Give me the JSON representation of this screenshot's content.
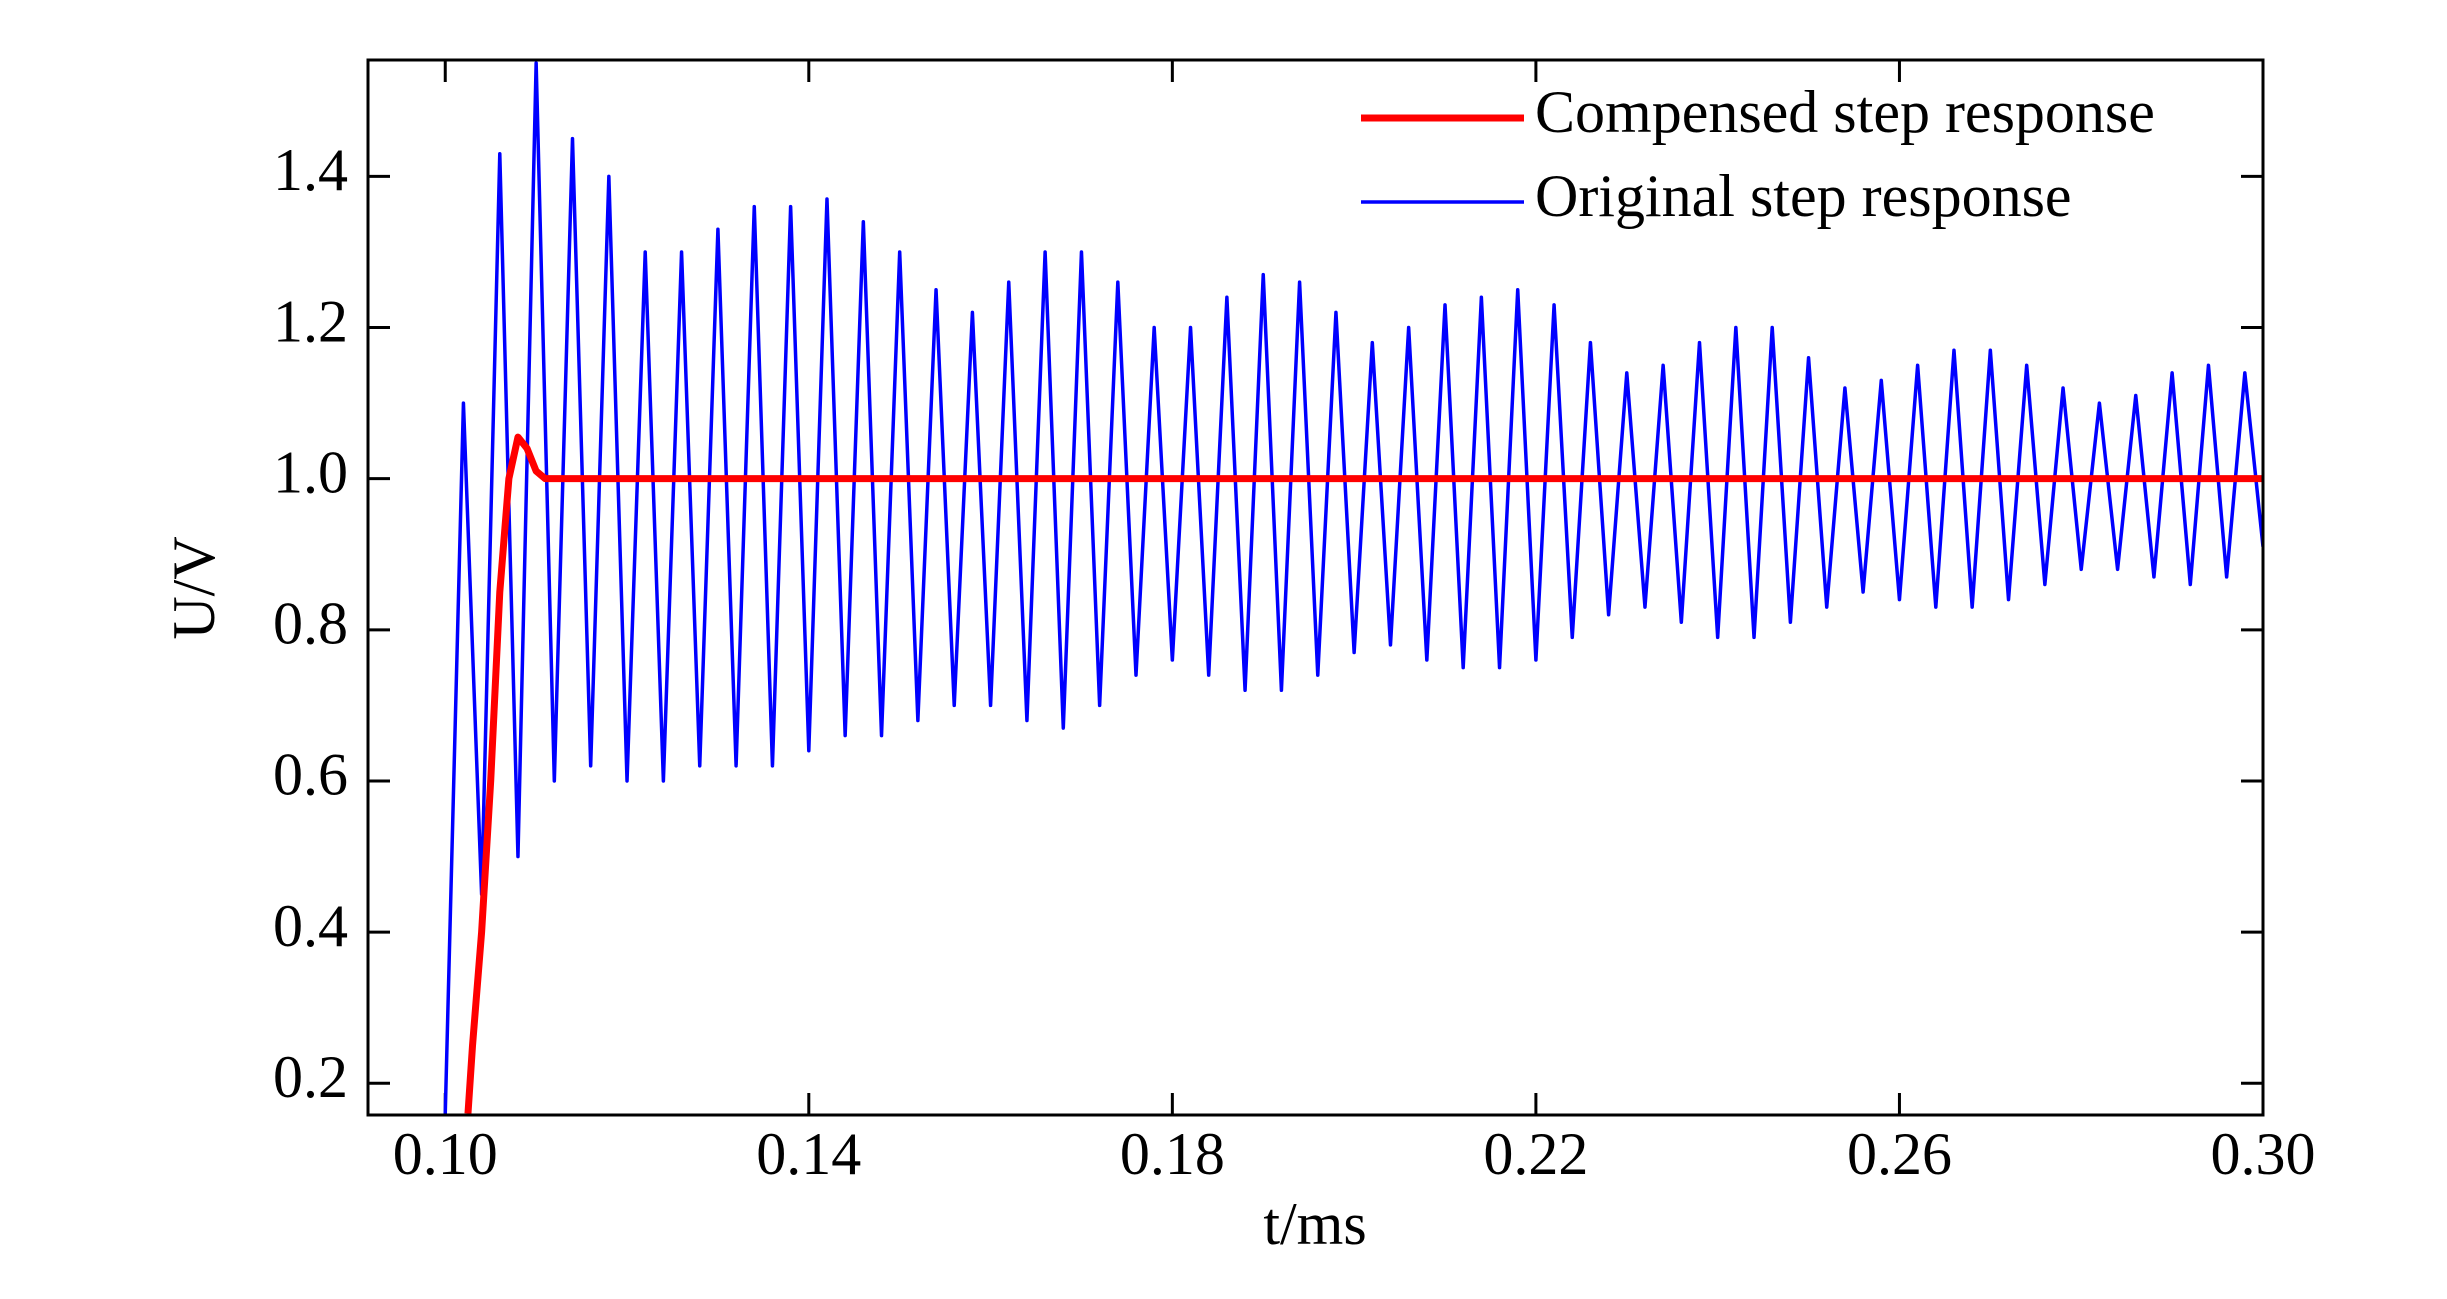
{
  "chart_data": {
    "type": "line",
    "xlabel": "t/ms",
    "ylabel": "U/V",
    "xlim": [
      0.0915,
      0.3
    ],
    "xticks": [
      {
        "value": 0.1,
        "label": "0.10"
      },
      0.14,
      0.18,
      0.22,
      0.26,
      {
        "value": 0.3,
        "label": "0.30"
      }
    ],
    "ylim": [
      0.158,
      1.554
    ],
    "yticks": [
      0.2,
      0.4,
      0.6,
      0.8,
      {
        "value": 1.0,
        "label": "1.0"
      },
      1.2,
      1.4
    ],
    "legend": "upper right",
    "series": [
      {
        "name": "Compensed step response",
        "color": "#ff0000",
        "x": [
          0.1025,
          0.103,
          0.104,
          0.105,
          0.106,
          0.107,
          0.108,
          0.109,
          0.11,
          0.111,
          0.115,
          0.2,
          0.3
        ],
        "values": [
          0.16,
          0.25,
          0.4,
          0.6,
          0.85,
          1.0,
          1.055,
          1.04,
          1.01,
          1.0,
          1.0,
          1.0,
          1.0
        ]
      },
      {
        "name": "Original step response",
        "color": "#0000ff",
        "x": [
          0.1,
          0.102,
          0.104,
          0.106,
          0.108,
          0.11,
          0.112,
          0.114,
          0.116,
          0.118,
          0.12,
          0.122,
          0.124,
          0.126,
          0.128,
          0.13,
          0.132,
          0.134,
          0.136,
          0.138,
          0.14,
          0.142,
          0.144,
          0.146,
          0.148,
          0.15,
          0.152,
          0.154,
          0.156,
          0.158,
          0.16,
          0.162,
          0.164,
          0.166,
          0.168,
          0.17,
          0.172,
          0.174,
          0.176,
          0.178,
          0.18,
          0.182,
          0.184,
          0.186,
          0.188,
          0.19,
          0.192,
          0.194,
          0.196,
          0.198,
          0.2,
          0.202,
          0.204,
          0.206,
          0.208,
          0.21,
          0.212,
          0.214,
          0.216,
          0.218,
          0.22,
          0.222,
          0.224,
          0.226,
          0.228,
          0.23,
          0.232,
          0.234,
          0.236,
          0.238,
          0.24,
          0.242,
          0.244,
          0.246,
          0.248,
          0.25,
          0.252,
          0.254,
          0.256,
          0.258,
          0.26,
          0.262,
          0.264,
          0.266,
          0.268,
          0.27,
          0.272,
          0.274,
          0.276,
          0.278,
          0.28,
          0.282,
          0.284,
          0.286,
          0.288,
          0.29,
          0.292,
          0.294,
          0.296,
          0.298,
          0.3
        ],
        "values": [
          0.16,
          1.1,
          0.45,
          1.43,
          0.5,
          1.55,
          0.6,
          1.45,
          0.62,
          1.4,
          0.6,
          1.3,
          0.6,
          1.3,
          0.62,
          1.33,
          0.62,
          1.36,
          0.62,
          1.36,
          0.64,
          1.37,
          0.66,
          1.34,
          0.66,
          1.3,
          0.68,
          1.25,
          0.7,
          1.22,
          0.7,
          1.26,
          0.68,
          1.3,
          0.67,
          1.3,
          0.7,
          1.26,
          0.74,
          1.2,
          0.76,
          1.2,
          0.74,
          1.24,
          0.72,
          1.27,
          0.72,
          1.26,
          0.74,
          1.22,
          0.77,
          1.18,
          0.78,
          1.2,
          0.76,
          1.23,
          0.75,
          1.24,
          0.75,
          1.25,
          0.76,
          1.23,
          0.79,
          1.18,
          0.82,
          1.14,
          0.83,
          1.15,
          0.81,
          1.18,
          0.79,
          1.2,
          0.79,
          1.2,
          0.81,
          1.16,
          0.83,
          1.12,
          0.85,
          1.13,
          0.84,
          1.15,
          0.83,
          1.17,
          0.83,
          1.17,
          0.84,
          1.15,
          0.86,
          1.12,
          0.88,
          1.1,
          0.88,
          1.11,
          0.87,
          1.14,
          0.86,
          1.15,
          0.87,
          1.14,
          0.91
        ]
      }
    ]
  }
}
